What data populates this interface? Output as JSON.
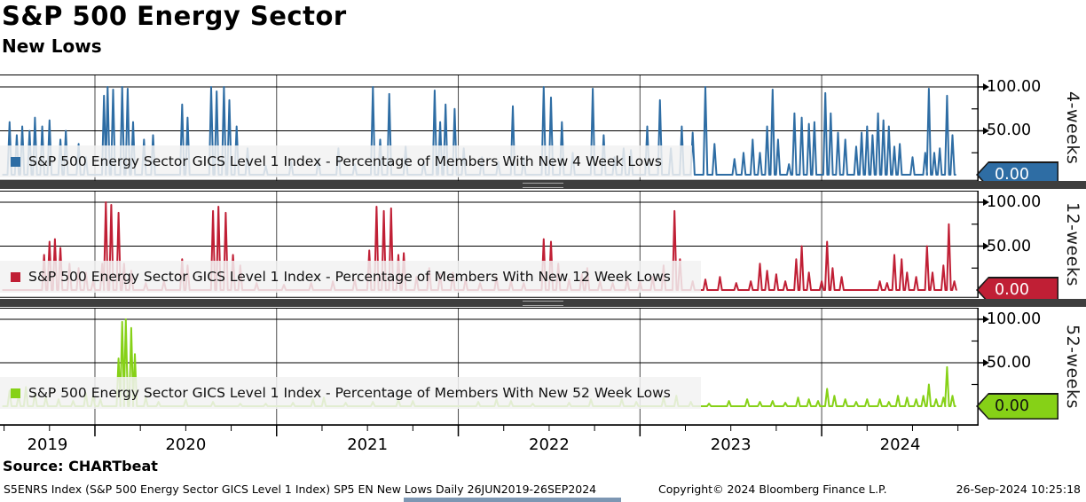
{
  "header": {
    "title": "S&P 500 Energy Sector",
    "subtitle": "New Lows"
  },
  "source_label": "Source: CHARTbeat",
  "footer": {
    "left": "S5ENRS Index (S&P 500 Energy Sector GICS Level 1 Index) SP5 EN New Lows  Daily 26JUN2019-26SEP2024",
    "center": "Copyright© 2024 Bloomberg Finance L.P.",
    "right": "26-Sep-2024 10:25:18"
  },
  "x_axis": {
    "start": 2019.4775,
    "end": 2024.864,
    "year_gridlines": [
      2020,
      2021,
      2022,
      2023,
      2024
    ],
    "years": [
      "2019",
      "2020",
      "2021",
      "2022",
      "2023",
      "2024"
    ]
  },
  "chart_data": {
    "type": "line",
    "title": "S&P 500 Energy Sector New Lows",
    "x_range_label": "Daily 26JUN2019-26SEP2024",
    "x_start": 2019.49,
    "x_end": 2024.74,
    "ylim": [
      0,
      100
    ],
    "grid": true,
    "panels": [
      {
        "id": "4-weeks",
        "side_label": "4-weeks",
        "legend": "S&P 500 Energy Sector GICS Level 1 Index - Percentage of Members With New 4 Week Lows",
        "color": "#2e6da4",
        "yticks": [
          "100.00",
          "50.00"
        ],
        "last_value": "0.00",
        "tag_text_color": "#ffffff",
        "spikes": [
          [
            2019.53,
            60
          ],
          [
            2019.57,
            45
          ],
          [
            2019.6,
            55
          ],
          [
            2019.64,
            50
          ],
          [
            2019.67,
            65
          ],
          [
            2019.71,
            55
          ],
          [
            2019.75,
            62
          ],
          [
            2019.81,
            40
          ],
          [
            2019.84,
            50
          ],
          [
            2019.91,
            35
          ],
          [
            2019.95,
            20
          ],
          [
            2020.05,
            90
          ],
          [
            2020.07,
            100
          ],
          [
            2020.1,
            97
          ],
          [
            2020.15,
            100
          ],
          [
            2020.18,
            98
          ],
          [
            2020.21,
            60
          ],
          [
            2020.27,
            40
          ],
          [
            2020.32,
            45
          ],
          [
            2020.48,
            80
          ],
          [
            2020.51,
            65
          ],
          [
            2020.64,
            100
          ],
          [
            2020.67,
            95
          ],
          [
            2020.71,
            100
          ],
          [
            2020.74,
            85
          ],
          [
            2020.78,
            55
          ],
          [
            2020.84,
            30
          ],
          [
            2020.94,
            10
          ],
          [
            2021.08,
            15
          ],
          [
            2021.23,
            18
          ],
          [
            2021.34,
            30
          ],
          [
            2021.43,
            12
          ],
          [
            2021.53,
            100
          ],
          [
            2021.57,
            40
          ],
          [
            2021.62,
            92
          ],
          [
            2021.71,
            32
          ],
          [
            2021.81,
            15
          ],
          [
            2021.87,
            96
          ],
          [
            2021.9,
            60
          ],
          [
            2021.93,
            80
          ],
          [
            2021.98,
            75
          ],
          [
            2022.03,
            30
          ],
          [
            2022.13,
            20
          ],
          [
            2022.22,
            15
          ],
          [
            2022.3,
            78
          ],
          [
            2022.36,
            20
          ],
          [
            2022.47,
            100
          ],
          [
            2022.51,
            88
          ],
          [
            2022.57,
            60
          ],
          [
            2022.63,
            25
          ],
          [
            2022.74,
            98
          ],
          [
            2022.8,
            45
          ],
          [
            2022.86,
            20
          ],
          [
            2022.91,
            30
          ],
          [
            2022.95,
            28
          ],
          [
            2023.04,
            55
          ],
          [
            2023.11,
            85
          ],
          [
            2023.17,
            30
          ],
          [
            2023.23,
            55
          ],
          [
            2023.29,
            48
          ],
          [
            2023.36,
            100
          ],
          [
            2023.41,
            35
          ],
          [
            2023.52,
            18
          ],
          [
            2023.57,
            25
          ],
          [
            2023.62,
            40
          ],
          [
            2023.66,
            25
          ],
          [
            2023.7,
            55
          ],
          [
            2023.73,
            97
          ],
          [
            2023.76,
            40
          ],
          [
            2023.82,
            12
          ],
          [
            2023.85,
            70
          ],
          [
            2023.89,
            65
          ],
          [
            2023.93,
            58
          ],
          [
            2023.96,
            60
          ],
          [
            2024.02,
            93
          ],
          [
            2024.05,
            70
          ],
          [
            2024.09,
            48
          ],
          [
            2024.13,
            40
          ],
          [
            2024.19,
            32
          ],
          [
            2024.22,
            48
          ],
          [
            2024.25,
            55
          ],
          [
            2024.28,
            45
          ],
          [
            2024.31,
            70
          ],
          [
            2024.34,
            62
          ],
          [
            2024.37,
            55
          ],
          [
            2024.4,
            32
          ],
          [
            2024.43,
            35
          ],
          [
            2024.5,
            20
          ],
          [
            2024.57,
            25
          ],
          [
            2024.59,
            98
          ],
          [
            2024.62,
            25
          ],
          [
            2024.65,
            30
          ],
          [
            2024.69,
            90
          ],
          [
            2024.72,
            45
          ]
        ]
      },
      {
        "id": "12-weeks",
        "side_label": "12-weeks",
        "legend": "S&P 500 Energy Sector GICS Level 1 Index - Percentage of Members With New 12 Week Lows",
        "color": "#c01f35",
        "yticks": [
          "100.00",
          "50.00"
        ],
        "last_value": "0.00",
        "tag_text_color": "#ffffff",
        "spikes": [
          [
            2019.72,
            40
          ],
          [
            2019.75,
            55
          ],
          [
            2019.78,
            58
          ],
          [
            2019.81,
            48
          ],
          [
            2019.86,
            30
          ],
          [
            2019.91,
            25
          ],
          [
            2019.95,
            20
          ],
          [
            2019.99,
            10
          ],
          [
            2020.04,
            30
          ],
          [
            2020.06,
            100
          ],
          [
            2020.09,
            97
          ],
          [
            2020.13,
            88
          ],
          [
            2020.16,
            30
          ],
          [
            2020.2,
            22
          ],
          [
            2020.28,
            8
          ],
          [
            2020.38,
            10
          ],
          [
            2020.48,
            35
          ],
          [
            2020.51,
            28
          ],
          [
            2020.65,
            90
          ],
          [
            2020.68,
            95
          ],
          [
            2020.72,
            88
          ],
          [
            2020.76,
            40
          ],
          [
            2020.8,
            28
          ],
          [
            2020.89,
            8
          ],
          [
            2021.04,
            6
          ],
          [
            2021.19,
            8
          ],
          [
            2021.31,
            10
          ],
          [
            2021.43,
            12
          ],
          [
            2021.51,
            45
          ],
          [
            2021.55,
            95
          ],
          [
            2021.59,
            90
          ],
          [
            2021.63,
            93
          ],
          [
            2021.67,
            40
          ],
          [
            2021.7,
            42
          ],
          [
            2021.77,
            15
          ],
          [
            2021.84,
            25
          ],
          [
            2021.9,
            18
          ],
          [
            2021.97,
            20
          ],
          [
            2022.04,
            12
          ],
          [
            2022.12,
            8
          ],
          [
            2022.21,
            15
          ],
          [
            2022.29,
            10
          ],
          [
            2022.36,
            8
          ],
          [
            2022.47,
            58
          ],
          [
            2022.51,
            55
          ],
          [
            2022.55,
            30
          ],
          [
            2022.61,
            12
          ],
          [
            2022.68,
            18
          ],
          [
            2022.71,
            25
          ],
          [
            2022.78,
            10
          ],
          [
            2022.85,
            8
          ],
          [
            2022.93,
            12
          ],
          [
            2023.0,
            10
          ],
          [
            2023.07,
            15
          ],
          [
            2023.13,
            28
          ],
          [
            2023.19,
            90
          ],
          [
            2023.22,
            35
          ],
          [
            2023.29,
            10
          ],
          [
            2023.36,
            12
          ],
          [
            2023.44,
            15
          ],
          [
            2023.53,
            8
          ],
          [
            2023.61,
            10
          ],
          [
            2023.66,
            30
          ],
          [
            2023.7,
            22
          ],
          [
            2023.75,
            18
          ],
          [
            2023.8,
            10
          ],
          [
            2023.86,
            35
          ],
          [
            2023.89,
            50
          ],
          [
            2023.93,
            20
          ],
          [
            2024.0,
            10
          ],
          [
            2024.03,
            55
          ],
          [
            2024.06,
            25
          ],
          [
            2024.11,
            15
          ],
          [
            2024.32,
            10
          ],
          [
            2024.36,
            8
          ],
          [
            2024.4,
            40
          ],
          [
            2024.44,
            35
          ],
          [
            2024.47,
            20
          ],
          [
            2024.52,
            15
          ],
          [
            2024.58,
            50
          ],
          [
            2024.61,
            20
          ],
          [
            2024.67,
            28
          ],
          [
            2024.7,
            75
          ],
          [
            2024.73,
            10
          ]
        ]
      },
      {
        "id": "52-weeks",
        "side_label": "52-weeks",
        "legend": "S&P 500 Energy Sector GICS Level 1 Index - Percentage of Members With New 52 Week Lows",
        "color": "#86d117",
        "yticks": [
          "100.00",
          "50.00"
        ],
        "last_value": "0.00",
        "tag_text_color": "#111111",
        "spikes": [
          [
            2019.53,
            18
          ],
          [
            2019.58,
            12
          ],
          [
            2019.62,
            22
          ],
          [
            2019.67,
            15
          ],
          [
            2019.73,
            10
          ],
          [
            2019.8,
            8
          ],
          [
            2019.88,
            6
          ],
          [
            2019.95,
            15
          ],
          [
            2019.99,
            12
          ],
          [
            2020.03,
            8
          ],
          [
            2020.13,
            55
          ],
          [
            2020.15,
            97
          ],
          [
            2020.17,
            100
          ],
          [
            2020.2,
            90
          ],
          [
            2020.22,
            60
          ],
          [
            2020.28,
            10
          ],
          [
            2020.35,
            5
          ],
          [
            2020.5,
            8
          ],
          [
            2020.65,
            5
          ],
          [
            2020.8,
            3
          ],
          [
            2020.94,
            3
          ],
          [
            2021.09,
            4
          ],
          [
            2021.2,
            8
          ],
          [
            2021.26,
            10
          ],
          [
            2021.38,
            4
          ],
          [
            2021.53,
            5
          ],
          [
            2021.67,
            8
          ],
          [
            2021.75,
            6
          ],
          [
            2022.11,
            5
          ],
          [
            2022.21,
            8
          ],
          [
            2022.29,
            6
          ],
          [
            2022.41,
            3
          ],
          [
            2022.61,
            4
          ],
          [
            2022.73,
            8
          ],
          [
            2022.9,
            8
          ],
          [
            2022.98,
            5
          ],
          [
            2023.13,
            10
          ],
          [
            2023.2,
            12
          ],
          [
            2023.28,
            5
          ],
          [
            2023.38,
            3
          ],
          [
            2023.49,
            6
          ],
          [
            2023.59,
            8
          ],
          [
            2023.66,
            5
          ],
          [
            2023.73,
            6
          ],
          [
            2023.8,
            4
          ],
          [
            2023.87,
            10
          ],
          [
            2023.93,
            8
          ],
          [
            2023.98,
            6
          ],
          [
            2024.03,
            20
          ],
          [
            2024.07,
            12
          ],
          [
            2024.13,
            8
          ],
          [
            2024.19,
            5
          ],
          [
            2024.25,
            8
          ],
          [
            2024.32,
            8
          ],
          [
            2024.37,
            5
          ],
          [
            2024.42,
            12
          ],
          [
            2024.47,
            10
          ],
          [
            2024.52,
            8
          ],
          [
            2024.56,
            12
          ],
          [
            2024.59,
            25
          ],
          [
            2024.63,
            8
          ],
          [
            2024.67,
            10
          ],
          [
            2024.69,
            45
          ],
          [
            2024.72,
            12
          ]
        ]
      }
    ]
  }
}
